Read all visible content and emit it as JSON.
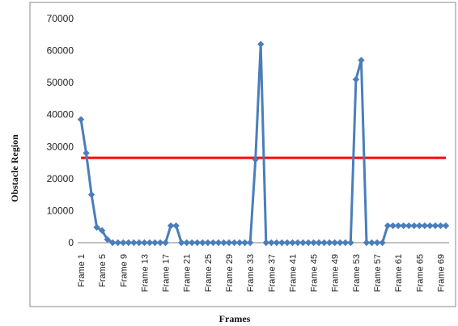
{
  "chart_data": {
    "type": "line",
    "title": "",
    "xlabel": "Frames",
    "ylabel": "Obstacle Region",
    "ylim": [
      0,
      70000
    ],
    "yticks": [
      0,
      10000,
      20000,
      30000,
      40000,
      50000,
      60000,
      70000
    ],
    "x_tick_labels": [
      "Frame 1",
      "Frame 5",
      "Frame 9",
      "Frame 13",
      "Frame 17",
      "Frame 21",
      "Frame 25",
      "Frame 29",
      "Frame 33",
      "Frame 37",
      "Frame 41",
      "Frame 45",
      "Frame 49",
      "Frame 53",
      "Frame 57",
      "Frame 61",
      "Frame 65",
      "Frame 69"
    ],
    "categories": [
      "Frame 1",
      "Frame 2",
      "Frame 3",
      "Frame 4",
      "Frame 5",
      "Frame 6",
      "Frame 7",
      "Frame 8",
      "Frame 9",
      "Frame 10",
      "Frame 11",
      "Frame 12",
      "Frame 13",
      "Frame 14",
      "Frame 15",
      "Frame 16",
      "Frame 17",
      "Frame 18",
      "Frame 19",
      "Frame 20",
      "Frame 21",
      "Frame 22",
      "Frame 23",
      "Frame 24",
      "Frame 25",
      "Frame 26",
      "Frame 27",
      "Frame 28",
      "Frame 29",
      "Frame 30",
      "Frame 31",
      "Frame 32",
      "Frame 33",
      "Frame 34",
      "Frame 35",
      "Frame 36",
      "Frame 37",
      "Frame 38",
      "Frame 39",
      "Frame 40",
      "Frame 41",
      "Frame 42",
      "Frame 43",
      "Frame 44",
      "Frame 45",
      "Frame 46",
      "Frame 47",
      "Frame 48",
      "Frame 49",
      "Frame 50",
      "Frame 51",
      "Frame 52",
      "Frame 53",
      "Frame 54",
      "Frame 55",
      "Frame 56",
      "Frame 57",
      "Frame 58",
      "Frame 59",
      "Frame 60",
      "Frame 61",
      "Frame 62",
      "Frame 63",
      "Frame 64",
      "Frame 65",
      "Frame 66",
      "Frame 67",
      "Frame 68",
      "Frame 69",
      "Frame 70"
    ],
    "series": [
      {
        "color": "#4A7EBB",
        "marker": "diamond",
        "values": [
          38500,
          28000,
          15000,
          4800,
          3800,
          1000,
          0,
          0,
          0,
          0,
          0,
          0,
          0,
          0,
          0,
          0,
          0,
          5300,
          5300,
          0,
          0,
          0,
          0,
          0,
          0,
          0,
          0,
          0,
          0,
          0,
          0,
          0,
          0,
          26000,
          62000,
          0,
          0,
          0,
          0,
          0,
          0,
          0,
          0,
          0,
          0,
          0,
          0,
          0,
          0,
          0,
          0,
          0,
          51000,
          57000,
          0,
          0,
          0,
          0,
          5300,
          5300,
          5300,
          5300,
          5300,
          5300,
          5300,
          5300,
          5300,
          5300,
          5300,
          5300
        ]
      }
    ],
    "threshold": {
      "value": 26500,
      "color": "#FF0000"
    },
    "grid": false,
    "legend": "none"
  }
}
